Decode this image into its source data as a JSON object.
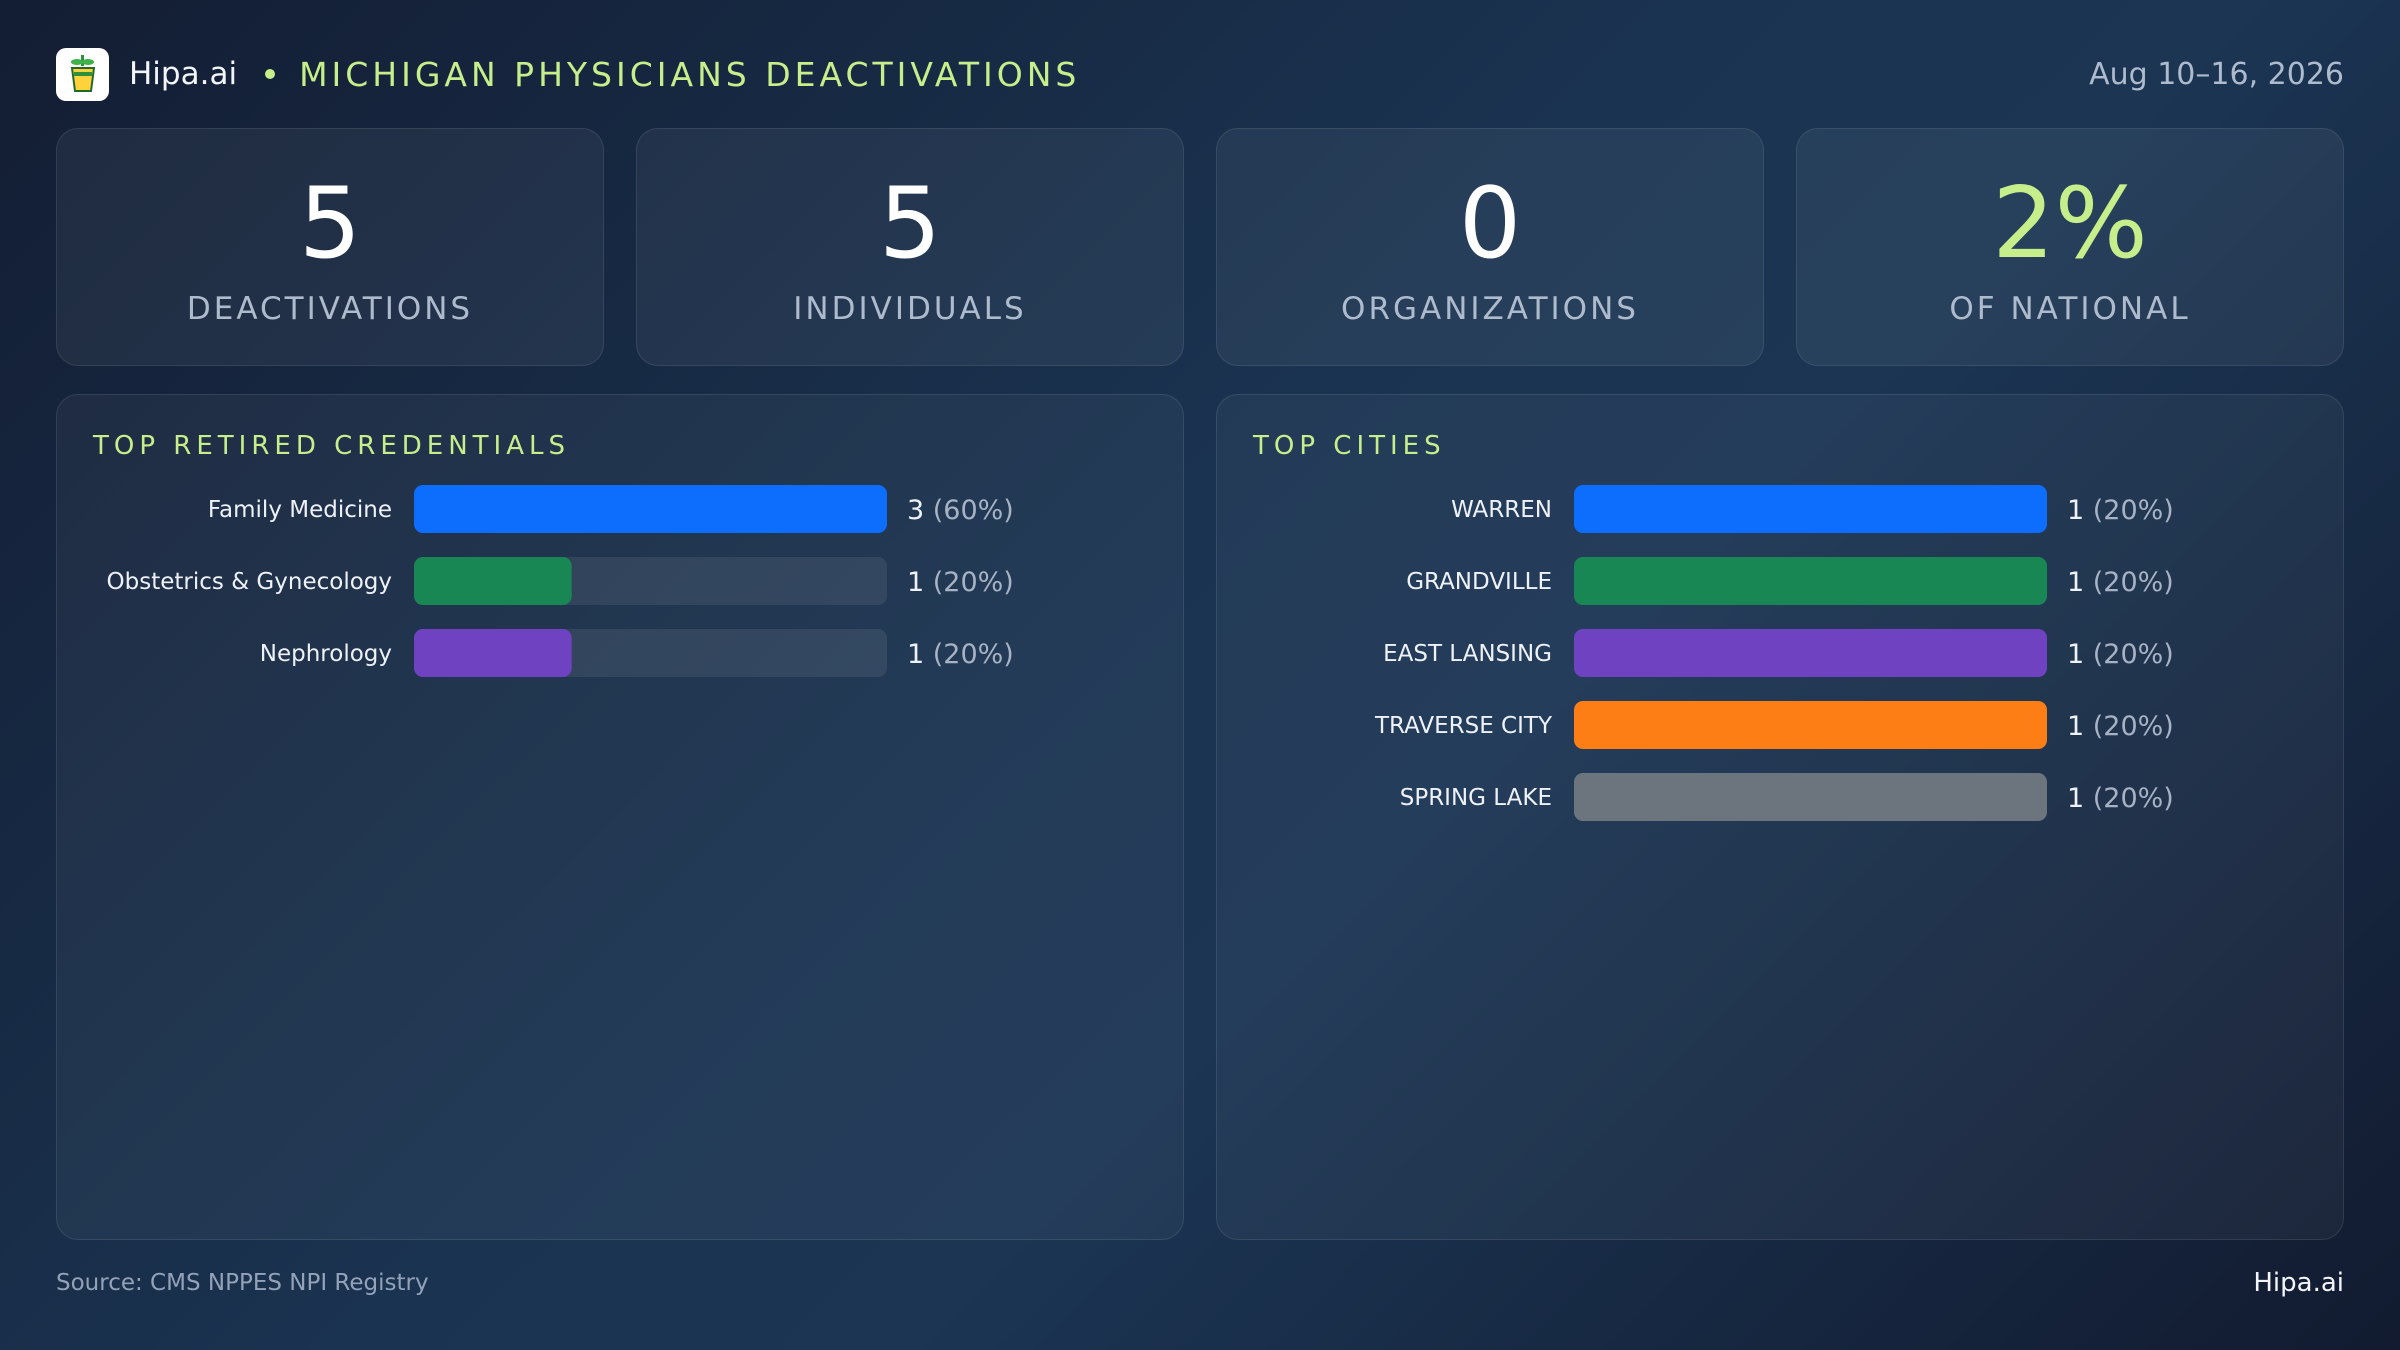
{
  "header": {
    "brand": "Hipa.ai",
    "title": "MICHIGAN PHYSICIANS DEACTIVATIONS",
    "date_range": "Aug 10–16, 2026",
    "logo_icon": "cup-logo-icon"
  },
  "kpis": [
    {
      "value": "5",
      "label": "DEACTIVATIONS"
    },
    {
      "value": "5",
      "label": "INDIVIDUALS"
    },
    {
      "value": "0",
      "label": "ORGANIZATIONS"
    },
    {
      "value": "2%",
      "label": "OF NATIONAL",
      "accent": "#c6ee8a"
    }
  ],
  "footer": {
    "source": "Source: CMS NPPES NPI Registry",
    "brand": "Hipa.ai"
  },
  "chart_data": [
    {
      "type": "bar",
      "orientation": "horizontal",
      "title": "TOP RETIRED CREDENTIALS",
      "categories": [
        "Family Medicine",
        "Obstetrics & Gynecology",
        "Nephrology"
      ],
      "values": [
        3,
        1,
        1
      ],
      "value_labels": [
        "3",
        "1",
        "1"
      ],
      "percent_labels": [
        "(60%)",
        "(20%)",
        "(20%)"
      ],
      "colors": [
        "#0d6efd",
        "#198754",
        "#6f42c1"
      ],
      "xlim": [
        0,
        3
      ]
    },
    {
      "type": "bar",
      "orientation": "horizontal",
      "title": "TOP CITIES",
      "categories": [
        "WARREN",
        "GRANDVILLE",
        "EAST LANSING",
        "TRAVERSE CITY",
        "SPRING LAKE"
      ],
      "values": [
        1,
        1,
        1,
        1,
        1
      ],
      "value_labels": [
        "1",
        "1",
        "1",
        "1",
        "1"
      ],
      "percent_labels": [
        "(20%)",
        "(20%)",
        "(20%)",
        "(20%)",
        "(20%)"
      ],
      "colors": [
        "#0d6efd",
        "#198754",
        "#6f42c1",
        "#fd7e14",
        "#6c757d"
      ],
      "xlim": [
        0,
        1
      ]
    }
  ]
}
